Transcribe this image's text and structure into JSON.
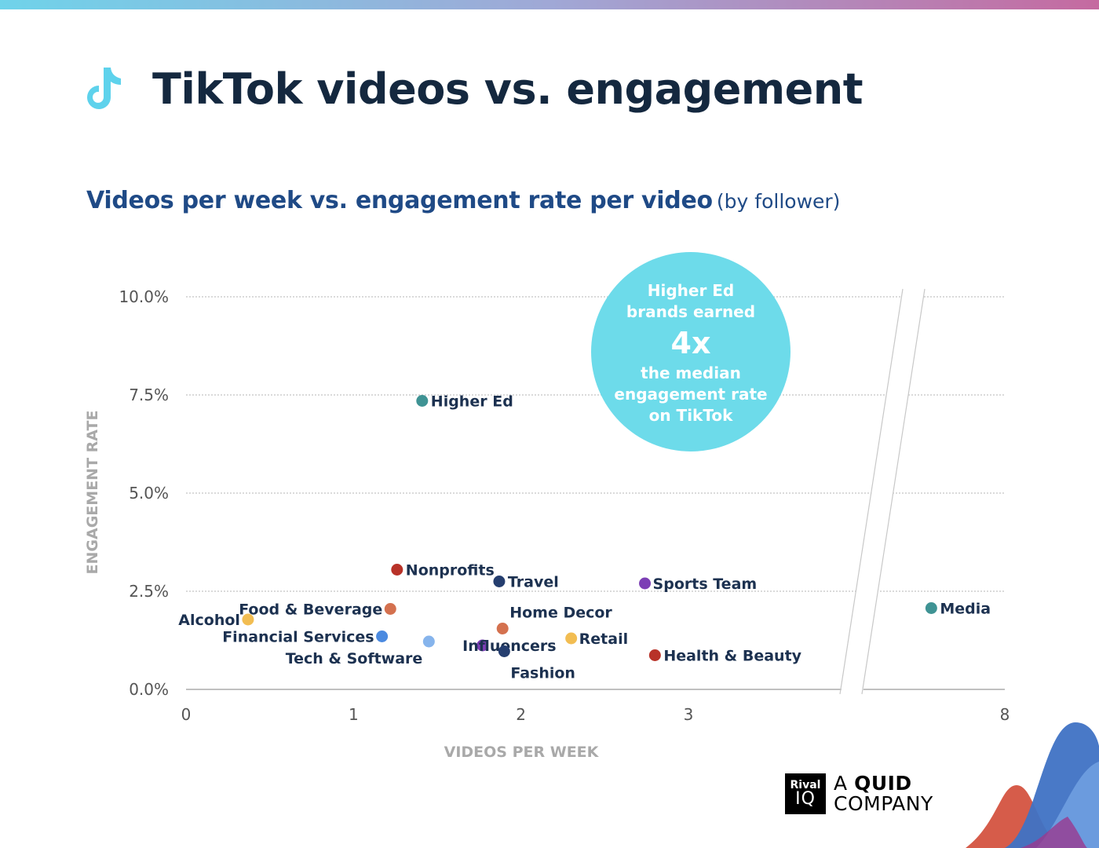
{
  "header": {
    "title": "TikTok videos vs. engagement",
    "subtitle_main": "Videos per week vs. engagement rate per video",
    "subtitle_note": "(by follower)"
  },
  "callout": {
    "line1": "Higher Ed",
    "line2": "brands earned",
    "big": "4x",
    "line3": "the median",
    "line4": "engagement rate",
    "line5": "on TikTok",
    "color": "#6ddbea"
  },
  "brand": {
    "box_top": "Rival",
    "box_bottom": "IQ",
    "text_prefix": "A ",
    "text_bold": "QUID",
    "text_line2": "COMPANY"
  },
  "chart_data": {
    "type": "scatter",
    "title": "Videos per week vs. engagement rate per video (by follower)",
    "xlabel": "VIDEOS PER WEEK",
    "ylabel": "ENGAGEMENT RATE",
    "xlim": [
      0,
      8
    ],
    "ylim": [
      0,
      10
    ],
    "x_axis_break": true,
    "x_ticks": [
      {
        "value": 0,
        "label": "0"
      },
      {
        "value": 1,
        "label": "1"
      },
      {
        "value": 2,
        "label": "2"
      },
      {
        "value": 3,
        "label": "3"
      },
      {
        "value": 8,
        "label": "8"
      }
    ],
    "y_ticks": [
      {
        "value": 0,
        "label": "0.0%"
      },
      {
        "value": 2.5,
        "label": "2.5%"
      },
      {
        "value": 5,
        "label": "5.0%"
      },
      {
        "value": 7.5,
        "label": "7.5%"
      },
      {
        "value": 10,
        "label": "10.0%"
      }
    ],
    "grid": true,
    "points": [
      {
        "name": "Higher Ed",
        "x": 1.41,
        "y": 7.35,
        "color": "#3f9394"
      },
      {
        "name": "Nonprofits",
        "x": 1.26,
        "y": 3.05,
        "color": "#b83228"
      },
      {
        "name": "Travel",
        "x": 1.87,
        "y": 2.75,
        "color": "#253e6f"
      },
      {
        "name": "Sports Team",
        "x": 2.74,
        "y": 2.7,
        "color": "#7c3fb5"
      },
      {
        "name": "Food & Beverage",
        "x": 1.22,
        "y": 2.05,
        "color": "#d4714f"
      },
      {
        "name": "Alcohol",
        "x": 0.37,
        "y": 1.78,
        "color": "#f2bd52"
      },
      {
        "name": "Financial Services",
        "x": 1.17,
        "y": 1.35,
        "color": "#4b8ae0"
      },
      {
        "name": "Tech & Software",
        "x": 1.45,
        "y": 1.22,
        "color": "#86b4ec"
      },
      {
        "name": "Home Decor",
        "x": 1.89,
        "y": 1.55,
        "color": "#d4714f"
      },
      {
        "name": "Influencers",
        "x": 1.77,
        "y": 1.12,
        "color": "#7c3fb5"
      },
      {
        "name": "Retail",
        "x": 2.3,
        "y": 1.3,
        "color": "#f2bd52"
      },
      {
        "name": "Fashion",
        "x": 1.9,
        "y": 0.97,
        "color": "#253e6f"
      },
      {
        "name": "Health & Beauty",
        "x": 2.8,
        "y": 0.87,
        "color": "#b83228"
      },
      {
        "name": "Media",
        "x": 7.1,
        "y": 2.07,
        "color": "#3f9394"
      }
    ]
  }
}
